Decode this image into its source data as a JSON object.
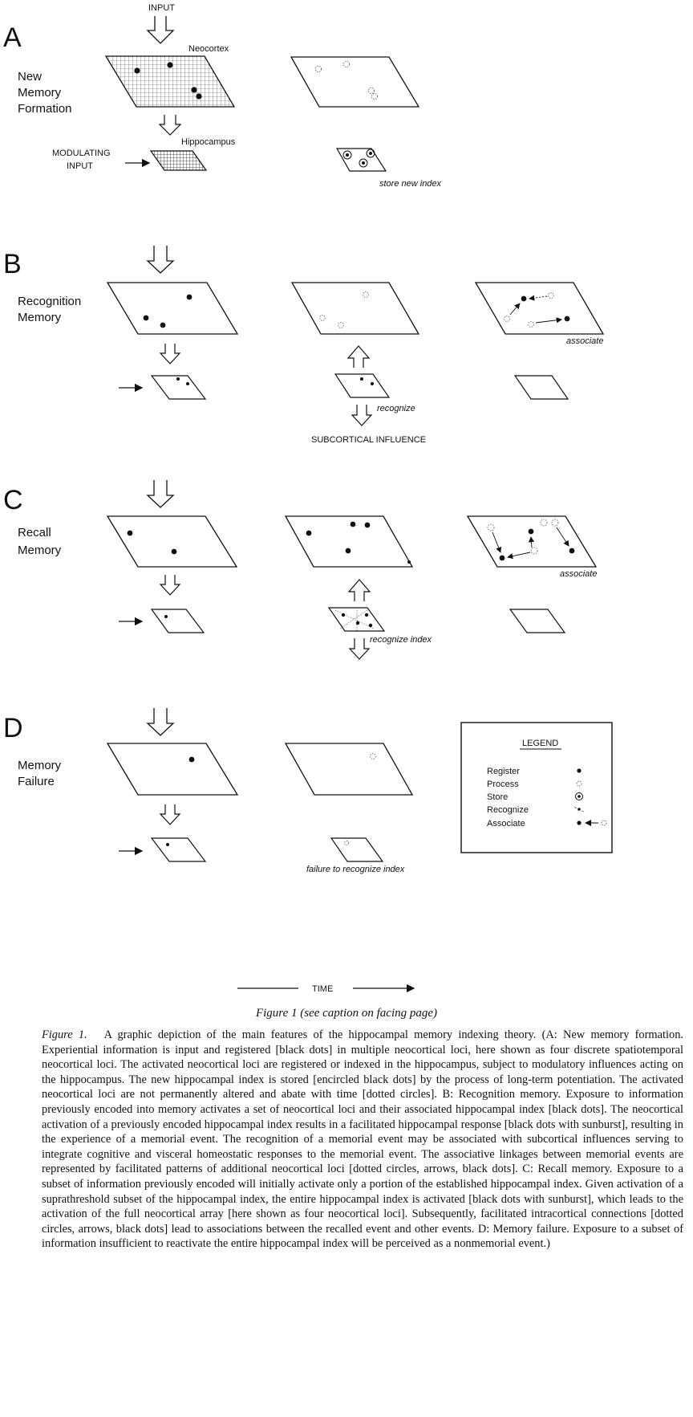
{
  "panels": {
    "A": {
      "letter": "A",
      "title_lines": [
        "New",
        "Memory",
        "Formation"
      ],
      "input": "INPUT",
      "neocortex": "Neocortex",
      "hippocampus": "Hippocampus",
      "modulating": [
        "MODULATING",
        "INPUT"
      ],
      "note": "store new index"
    },
    "B": {
      "letter": "B",
      "title_lines": [
        "Recognition",
        "Memory"
      ],
      "note_associate": "associate",
      "note_recognize": "recognize",
      "subcortical": "SUBCORTICAL INFLUENCE"
    },
    "C": {
      "letter": "C",
      "title_lines": [
        "Recall",
        "Memory"
      ],
      "note_associate": "associate",
      "note_recognize": "recognize index"
    },
    "D": {
      "letter": "D",
      "title_lines": [
        "Memory",
        "Failure"
      ],
      "note_failure": "failure to recognize index"
    }
  },
  "legend": {
    "title": "LEGEND",
    "items": [
      {
        "label": "Register",
        "symbol": "black-dot"
      },
      {
        "label": "Process",
        "symbol": "dotted-circle"
      },
      {
        "label": "Store",
        "symbol": "encircled-dot"
      },
      {
        "label": "Recognize",
        "symbol": "sunburst-dot"
      },
      {
        "label": "Associate",
        "symbol": "dot-arrow-circle"
      }
    ]
  },
  "time_label": "TIME",
  "caption": {
    "title": "Figure 1 (see caption on facing page)",
    "label": "Figure 1.",
    "text": "A graphic depiction of the main features of the hippocampal memory indexing theory. (A: New memory formation. Experiential information is input and registered [black dots] in multiple neocortical loci, here shown as four discrete spatiotemporal neocortical loci. The activated neocortical loci are registered or indexed in the hippocampus, subject to modulatory influences acting on the hippocampus. The new hippocampal index is stored [encircled black dots] by the process of long-term potentiation. The activated neocortical loci are not permanently altered and abate with time [dotted circles]. B: Recognition memory. Exposure to information previously encoded into memory activates a set of neocortical loci and their associated hippocampal index [black dots]. The neocortical activation of a previously encoded hippocampal index results in a facilitated hippocampal response [black dots with sunburst], resulting in the experience of a memorial event. The recognition of a memorial event may be associated with subcortical influences serving to integrate cognitive and visceral homeostatic responses to the memorial event. The associative linkages between memorial events are represented by facilitated patterns of additional neocortical loci [dotted circles, arrows, black dots]. C: Recall memory. Exposure to a subset of information previously encoded will initially activate only a portion of the established hippocampal index. Given activation of a suprathreshold subset of the hippocampal index, the entire hippocampal index is activated [black dots with sunburst], which leads to the activation of the full neocortical array [here shown as four neocortical loci]. Subsequently, facilitated intracortical connections [dotted circles, arrows, black dots] lead to associations between the recalled event and other events. D: Memory failure. Exposure to a subset of information insufficient to reactivate the entire hippocampal index will be perceived as a nonmemorial event.)"
  },
  "colors": {
    "ink": "#111111",
    "paper": "#ffffff",
    "grid": "#555555"
  }
}
